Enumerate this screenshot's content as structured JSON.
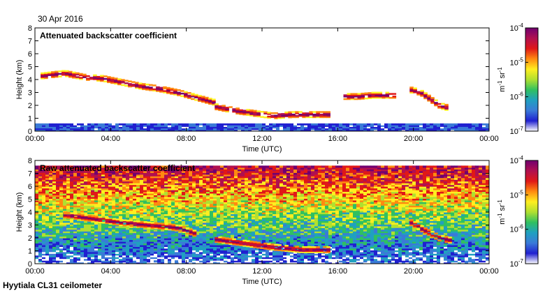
{
  "header": {
    "date": "30 Apr 2016"
  },
  "footer": {
    "site": "Hyytiala CL31 ceilometer"
  },
  "colorbar": {
    "unit_m": "m",
    "unit_m_exp": "-1",
    "unit_sr": " sr",
    "unit_sr_exp": "-1",
    "ticks": [
      {
        "base": "10",
        "exp": "-4",
        "value": 0.0001
      },
      {
        "base": "10",
        "exp": "-5",
        "value": 1e-05
      },
      {
        "base": "10",
        "exp": "-6",
        "value": 1e-06
      },
      {
        "base": "10",
        "exp": "-7",
        "value": 1e-07
      }
    ],
    "colors": [
      "#ffffff",
      "#2020d0",
      "#3a7ad8",
      "#20a0c0",
      "#30c060",
      "#b0e030",
      "#ffee20",
      "#ff8a10",
      "#e01818",
      "#b01050",
      "#700070"
    ]
  },
  "chart_data": [
    {
      "type": "heatmap",
      "title": "Attenuated backscatter coefficient",
      "xlabel": "Time (UTC)",
      "ylabel": "Height (km)",
      "xticks": [
        "00:00",
        "04:00",
        "08:00",
        "12:00",
        "16:00",
        "20:00",
        "00:00"
      ],
      "yticks": [
        "0",
        "1",
        "2",
        "3",
        "4",
        "5",
        "6",
        "7",
        "8"
      ],
      "xlim_hours": [
        0,
        24
      ],
      "ylim_km": [
        0,
        8
      ],
      "colorscale": "log",
      "clim": [
        1e-07,
        0.0001
      ],
      "features": [
        {
          "name": "elevated aerosol/cloud layer",
          "t": [
            0.3,
            1.5,
            2.5,
            3.5,
            4.5,
            5.5,
            6.5,
            7.5,
            8.5,
            9.5
          ],
          "h": [
            4.3,
            4.5,
            4.2,
            4.1,
            3.8,
            3.5,
            3.3,
            3.0,
            2.6,
            2.2
          ]
        },
        {
          "name": "low cloud layer",
          "t": [
            9.5,
            10.5,
            11.5,
            12.5,
            13.5,
            14.5,
            15.5
          ],
          "h": [
            1.9,
            1.6,
            1.4,
            1.2,
            1.3,
            1.3,
            1.3
          ]
        },
        {
          "name": "afternoon layer",
          "t": [
            16.3,
            17.0,
            17.8,
            18.5,
            19.0
          ],
          "h": [
            2.7,
            2.7,
            2.8,
            2.8,
            2.8
          ]
        },
        {
          "name": "evening cloud",
          "t": [
            19.8,
            20.3,
            20.8,
            21.3,
            21.8
          ],
          "h": [
            3.2,
            3.0,
            2.5,
            2.0,
            1.8
          ]
        },
        {
          "name": "boundary layer",
          "t": [
            0,
            24
          ],
          "h": [
            0.5,
            0.5
          ]
        }
      ]
    },
    {
      "type": "heatmap",
      "title": "Raw attenuated backscatter coefficient",
      "xlabel": "Time (UTC)",
      "ylabel": "Height (km)",
      "xticks": [
        "00:00",
        "04:00",
        "08:00",
        "12:00",
        "16:00",
        "20:00",
        "00:00"
      ],
      "yticks": [
        "0",
        "1",
        "2",
        "3",
        "4",
        "5",
        "6",
        "7",
        "8"
      ],
      "xlim_hours": [
        0,
        24
      ],
      "ylim_km": [
        0,
        8
      ],
      "colorscale": "log",
      "clim": [
        1e-07,
        0.0001
      ],
      "features": [
        {
          "name": "noise-dominated signal increasing with height",
          "t": [
            0,
            24
          ],
          "h": [
            3,
            8
          ]
        },
        {
          "name": "elevated aerosol/cloud layer",
          "t": [
            1.5,
            3.0,
            4.5,
            6.0,
            7.5,
            8.5
          ],
          "h": [
            3.8,
            3.5,
            3.2,
            3.0,
            2.8,
            2.3
          ]
        },
        {
          "name": "low cloud layer",
          "t": [
            9.5,
            11,
            12.5,
            14,
            15.5
          ],
          "h": [
            1.9,
            1.6,
            1.3,
            1.1,
            1.1
          ]
        },
        {
          "name": "evening cloud",
          "t": [
            19.8,
            20.5,
            21.3,
            22
          ],
          "h": [
            3.2,
            2.6,
            2.0,
            1.8
          ]
        }
      ]
    }
  ]
}
